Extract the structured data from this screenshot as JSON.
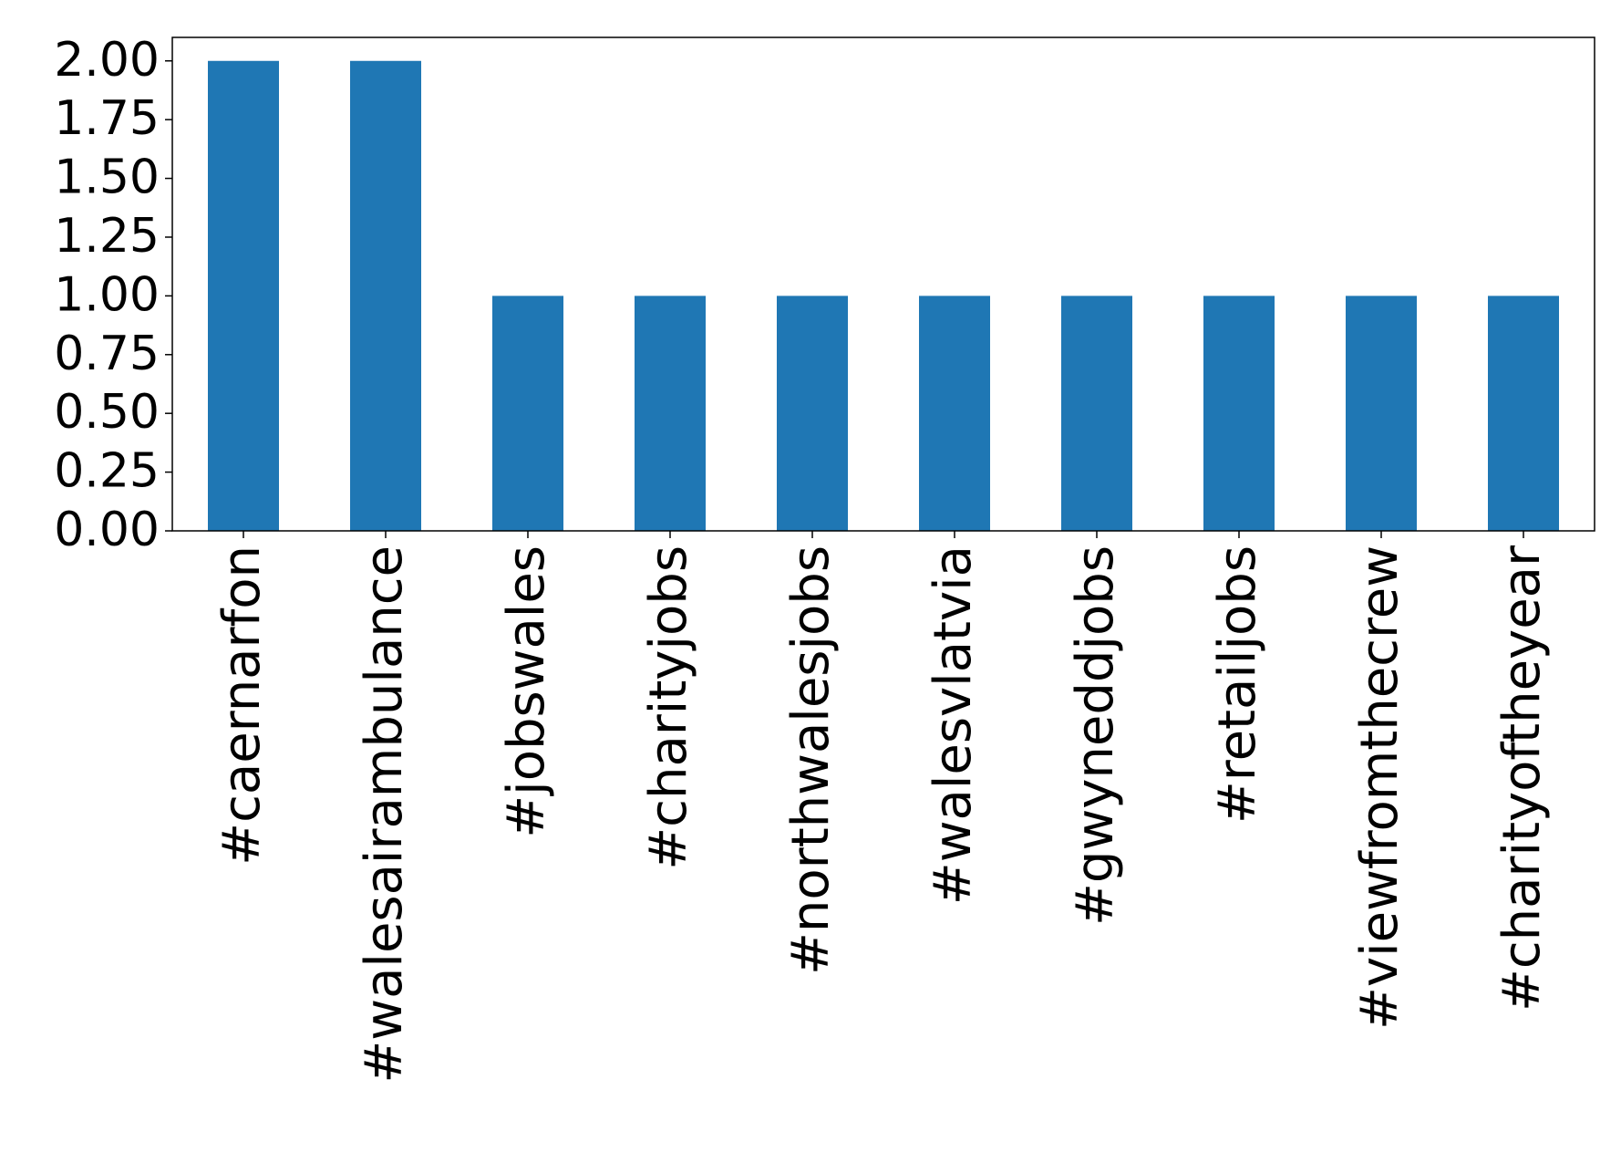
{
  "chart_data": {
    "type": "bar",
    "categories": [
      "#caernarfon",
      "#walesairambulance",
      "#jobswales",
      "#charityjobs",
      "#northwalesjobs",
      "#walesvlatvia",
      "#gwyneddjobs",
      "#retailjobs",
      "#viewfromthecrew",
      "#charityoftheyear"
    ],
    "values": [
      2,
      2,
      1,
      1,
      1,
      1,
      1,
      1,
      1,
      1
    ],
    "color": "#1f77b4",
    "ylim": [
      0,
      2.1
    ],
    "yticks": [
      {
        "value": 0,
        "label": "0.00"
      },
      0.25,
      {
        "value": 0.5,
        "label": "0.50"
      },
      0.75,
      {
        "value": 1,
        "label": "1.00"
      },
      1.25,
      {
        "value": 1.5,
        "label": "1.50"
      },
      1.75,
      {
        "value": 2,
        "label": "2.00"
      }
    ],
    "grid": false
  }
}
